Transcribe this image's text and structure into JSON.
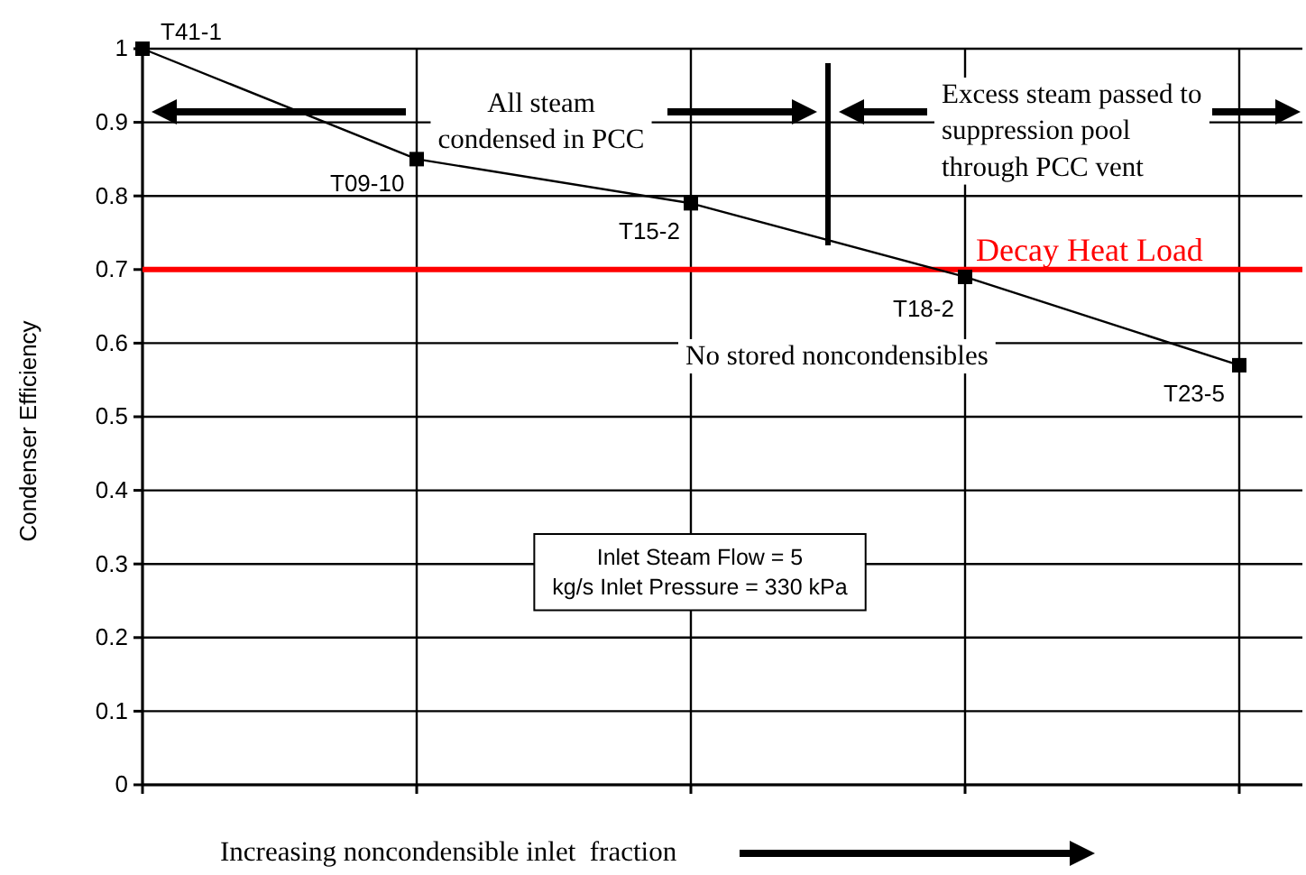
{
  "chart_data": {
    "type": "line",
    "xlabel": "Increasing noncondensible inlet  fraction",
    "ylabel": "Condenser Efficiency",
    "categories": [
      null,
      null,
      null,
      null,
      null
    ],
    "series": [
      {
        "color": "#000000",
        "values": [
          1,
          0.85,
          0.79,
          0.69,
          0.57
        ]
      }
    ],
    "ylim": [
      0,
      1
    ],
    "yticks": [
      0,
      0.1,
      0.2,
      0.3,
      0.4,
      0.5,
      0.6,
      0.7,
      0.8,
      0.9,
      1
    ],
    "grid": true,
    "marker": "square",
    "line_style": "solid",
    "ref_lines": [
      {
        "axis": "y",
        "value": 0.7,
        "label": "Decay Heat Load",
        "color": "#ff0000"
      }
    ],
    "annotations": [
      "T41-1",
      "T09-10",
      "T15-2",
      "T18-2",
      "T23-5",
      "All steam condensed in PCC",
      "Excess steam passed to suppression pool through PCC vent",
      "No stored noncondensibles",
      "Inlet Steam Flow = 5 kg/s Inlet Pressure = 330 kPa"
    ]
  }
}
